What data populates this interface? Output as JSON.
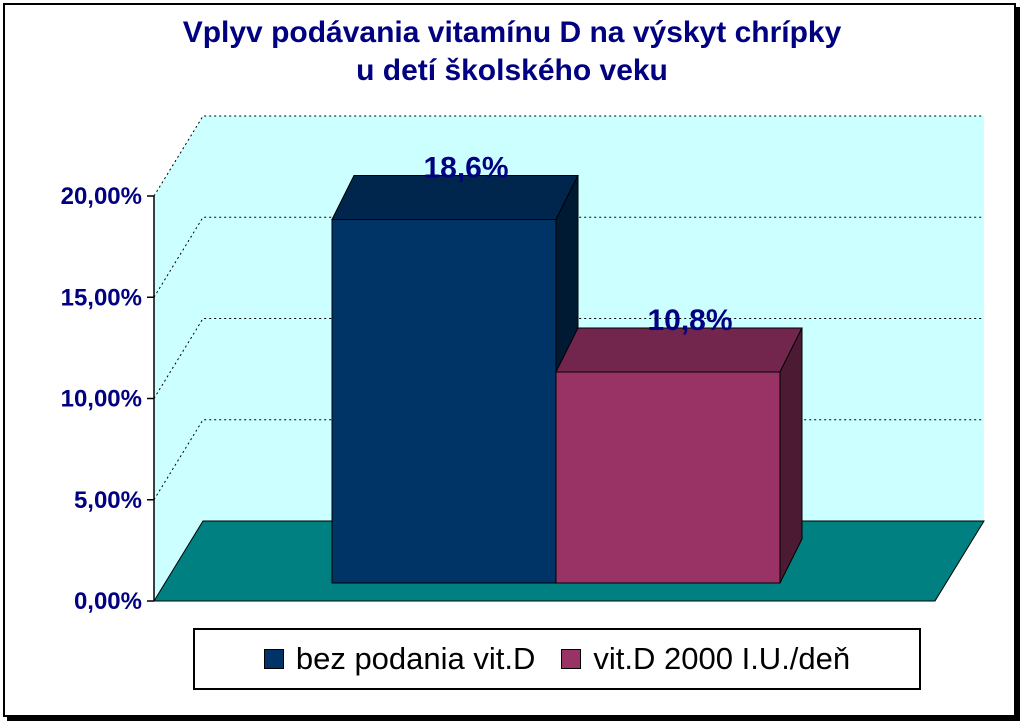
{
  "chart_data": {
    "type": "bar",
    "title": [
      "Vplyv podávania vitamínu D na výskyt chrípky",
      "u detí školského veku"
    ],
    "categories": [
      ""
    ],
    "series": [
      {
        "name": "bez podania vit.D",
        "values": [
          18.6
        ],
        "label": "18,6%",
        "color": "#003366"
      },
      {
        "name": "vit.D 2000 I.U./deň",
        "values": [
          10.8
        ],
        "label": "10,8%",
        "color": "#993366"
      }
    ],
    "ylim": [
      0,
      20
    ],
    "yticks": [
      0,
      5,
      10,
      15,
      20
    ],
    "ytick_labels": [
      "0,00%",
      "5,00%",
      "10,00%",
      "15,00%",
      "20,00%"
    ],
    "grid": true,
    "legend": "bottom",
    "wall_color": "#CCFFFF",
    "floor_color": "#008080"
  }
}
